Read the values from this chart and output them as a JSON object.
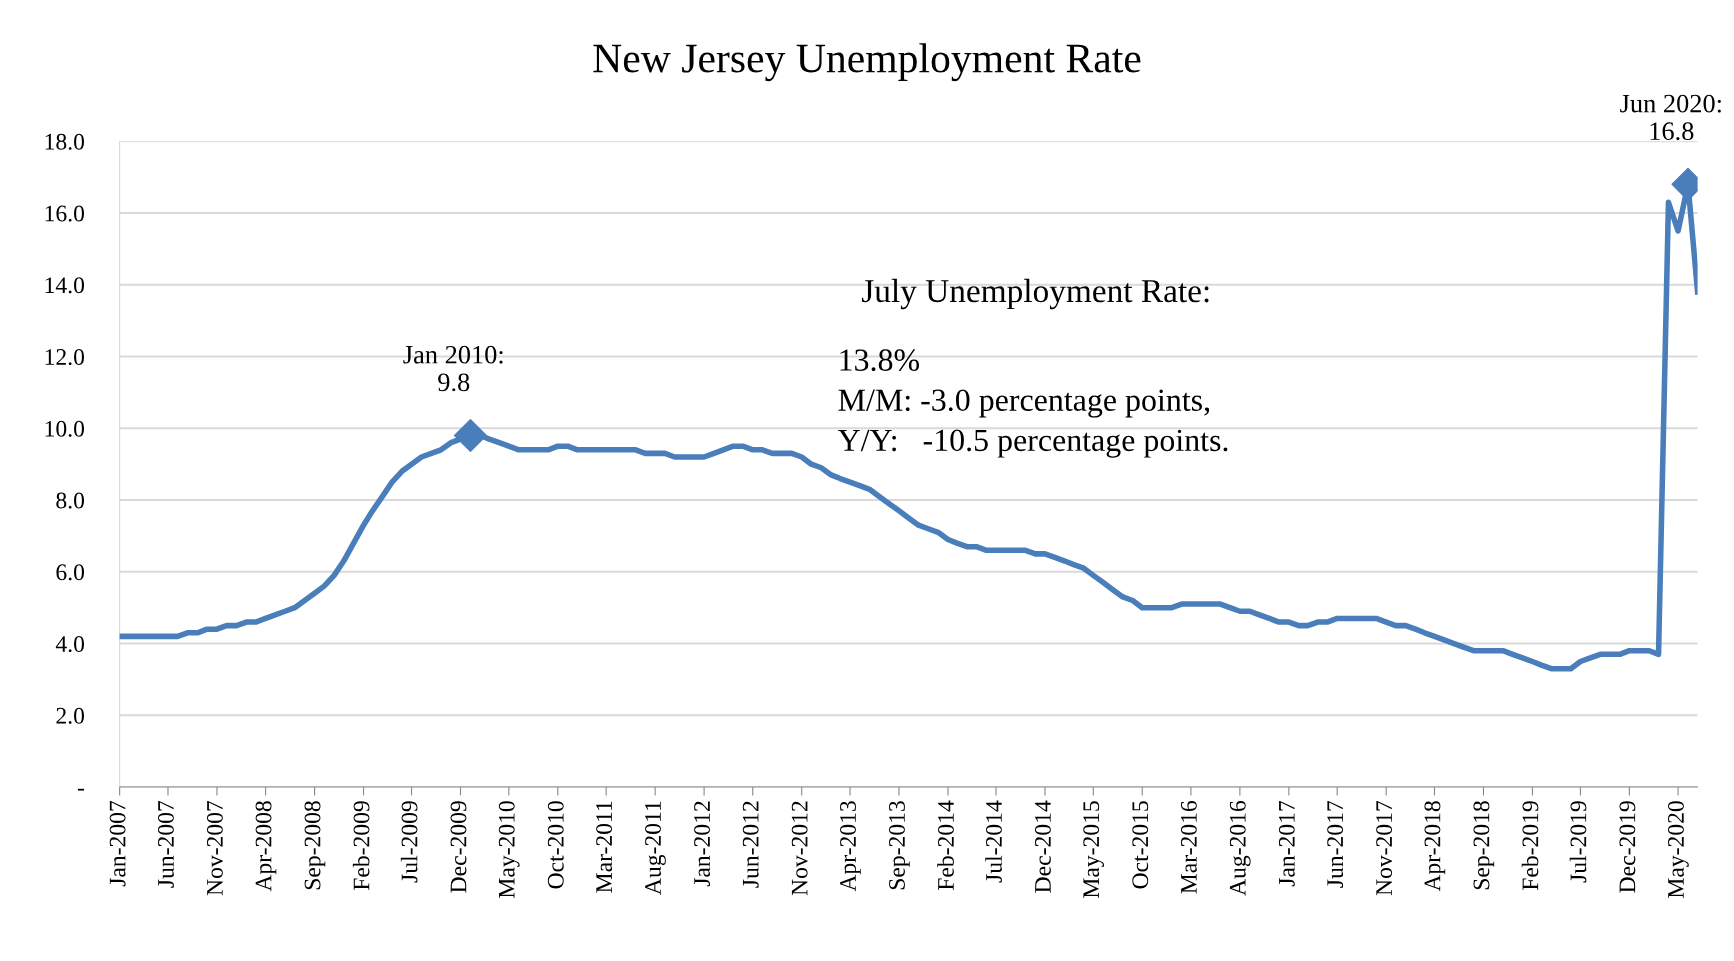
{
  "chart_data": {
    "type": "line",
    "title": "New Jersey Unemployment Rate",
    "x": [
      "2007-01",
      "2007-02",
      "2007-03",
      "2007-04",
      "2007-05",
      "2007-06",
      "2007-07",
      "2007-08",
      "2007-09",
      "2007-10",
      "2007-11",
      "2007-12",
      "2008-01",
      "2008-02",
      "2008-03",
      "2008-04",
      "2008-05",
      "2008-06",
      "2008-07",
      "2008-08",
      "2008-09",
      "2008-10",
      "2008-11",
      "2008-12",
      "2009-01",
      "2009-02",
      "2009-03",
      "2009-04",
      "2009-05",
      "2009-06",
      "2009-07",
      "2009-08",
      "2009-09",
      "2009-10",
      "2009-11",
      "2009-12",
      "2010-01",
      "2010-02",
      "2010-03",
      "2010-04",
      "2010-05",
      "2010-06",
      "2010-07",
      "2010-08",
      "2010-09",
      "2010-10",
      "2010-11",
      "2010-12",
      "2011-01",
      "2011-02",
      "2011-03",
      "2011-04",
      "2011-05",
      "2011-06",
      "2011-07",
      "2011-08",
      "2011-09",
      "2011-10",
      "2011-11",
      "2011-12",
      "2012-01",
      "2012-02",
      "2012-03",
      "2012-04",
      "2012-05",
      "2012-06",
      "2012-07",
      "2012-08",
      "2012-09",
      "2012-10",
      "2012-11",
      "2012-12",
      "2013-01",
      "2013-02",
      "2013-03",
      "2013-04",
      "2013-05",
      "2013-06",
      "2013-07",
      "2013-08",
      "2013-09",
      "2013-10",
      "2013-11",
      "2013-12",
      "2014-01",
      "2014-02",
      "2014-03",
      "2014-04",
      "2014-05",
      "2014-06",
      "2014-07",
      "2014-08",
      "2014-09",
      "2014-10",
      "2014-11",
      "2014-12",
      "2015-01",
      "2015-02",
      "2015-03",
      "2015-04",
      "2015-05",
      "2015-06",
      "2015-07",
      "2015-08",
      "2015-09",
      "2015-10",
      "2015-11",
      "2015-12",
      "2016-01",
      "2016-02",
      "2016-03",
      "2016-04",
      "2016-05",
      "2016-06",
      "2016-07",
      "2016-08",
      "2016-09",
      "2016-10",
      "2016-11",
      "2016-12",
      "2017-01",
      "2017-02",
      "2017-03",
      "2017-04",
      "2017-05",
      "2017-06",
      "2017-07",
      "2017-08",
      "2017-09",
      "2017-10",
      "2017-11",
      "2017-12",
      "2018-01",
      "2018-02",
      "2018-03",
      "2018-04",
      "2018-05",
      "2018-06",
      "2018-07",
      "2018-08",
      "2018-09",
      "2018-10",
      "2018-11",
      "2018-12",
      "2019-01",
      "2019-02",
      "2019-03",
      "2019-04",
      "2019-05",
      "2019-06",
      "2019-07",
      "2019-08",
      "2019-09",
      "2019-10",
      "2019-11",
      "2019-12",
      "2020-01",
      "2020-02",
      "2020-03",
      "2020-04",
      "2020-05",
      "2020-06",
      "2020-07"
    ],
    "series": [
      {
        "color": "#4a7ebb",
        "values": [
          4.2,
          4.2,
          4.2,
          4.2,
          4.2,
          4.2,
          4.2,
          4.3,
          4.3,
          4.4,
          4.4,
          4.5,
          4.5,
          4.6,
          4.6,
          4.7,
          4.8,
          4.9,
          5.0,
          5.2,
          5.4,
          5.6,
          5.9,
          6.3,
          6.8,
          7.3,
          7.7,
          8.1,
          8.5,
          8.8,
          9.0,
          9.2,
          9.3,
          9.4,
          9.6,
          9.7,
          9.8,
          9.8,
          9.7,
          9.6,
          9.5,
          9.4,
          9.4,
          9.4,
          9.4,
          9.5,
          9.5,
          9.4,
          9.4,
          9.4,
          9.4,
          9.4,
          9.4,
          9.4,
          9.3,
          9.3,
          9.3,
          9.2,
          9.2,
          9.2,
          9.2,
          9.3,
          9.4,
          9.5,
          9.5,
          9.4,
          9.4,
          9.3,
          9.3,
          9.3,
          9.2,
          9.0,
          8.9,
          8.7,
          8.6,
          8.5,
          8.4,
          8.3,
          8.1,
          7.9,
          7.7,
          7.5,
          7.3,
          7.2,
          7.1,
          6.9,
          6.8,
          6.7,
          6.7,
          6.6,
          6.6,
          6.6,
          6.6,
          6.6,
          6.5,
          6.5,
          6.4,
          6.3,
          6.2,
          6.1,
          5.9,
          5.7,
          5.5,
          5.3,
          5.2,
          5.0,
          5.0,
          5.0,
          5.0,
          5.1,
          5.1,
          5.1,
          5.1,
          5.1,
          5.0,
          4.9,
          4.9,
          4.8,
          4.7,
          4.6,
          4.6,
          4.5,
          4.5,
          4.6,
          4.6,
          4.7,
          4.7,
          4.7,
          4.7,
          4.7,
          4.6,
          4.5,
          4.5,
          4.4,
          4.3,
          4.2,
          4.1,
          4.0,
          3.9,
          3.8,
          3.8,
          3.8,
          3.8,
          3.7,
          3.6,
          3.5,
          3.4,
          3.3,
          3.3,
          3.3,
          3.5,
          3.6,
          3.7,
          3.7,
          3.7,
          3.8,
          3.8,
          3.8,
          3.7,
          16.3,
          15.5,
          16.8,
          13.8
        ]
      },
      {
        "type": "scatter",
        "color": "#4a7ebb",
        "marker": "diamond",
        "x": [
          "2010-01",
          "2020-06"
        ],
        "values": [
          9.8,
          16.8
        ]
      }
    ],
    "xlim": [
      "2007-01",
      "2020-07"
    ],
    "xticks": [
      {
        "value": "2007-01",
        "label": "Jan-2007"
      },
      {
        "value": "2007-06",
        "label": "Jun-2007"
      },
      {
        "value": "2007-11",
        "label": "Nov-2007"
      },
      {
        "value": "2008-04",
        "label": "Apr-2008"
      },
      {
        "value": "2008-09",
        "label": "Sep-2008"
      },
      {
        "value": "2009-02",
        "label": "Feb-2009"
      },
      {
        "value": "2009-07",
        "label": "Jul-2009"
      },
      {
        "value": "2009-12",
        "label": "Dec-2009"
      },
      {
        "value": "2010-05",
        "label": "May-2010"
      },
      {
        "value": "2010-10",
        "label": "Oct-2010"
      },
      {
        "value": "2011-03",
        "label": "Mar-2011"
      },
      {
        "value": "2011-08",
        "label": "Aug-2011"
      },
      {
        "value": "2012-01",
        "label": "Jan-2012"
      },
      {
        "value": "2012-06",
        "label": "Jun-2012"
      },
      {
        "value": "2012-11",
        "label": "Nov-2012"
      },
      {
        "value": "2013-04",
        "label": "Apr-2013"
      },
      {
        "value": "2013-09",
        "label": "Sep-2013"
      },
      {
        "value": "2014-02",
        "label": "Feb-2014"
      },
      {
        "value": "2014-07",
        "label": "Jul-2014"
      },
      {
        "value": "2014-12",
        "label": "Dec-2014"
      },
      {
        "value": "2015-05",
        "label": "May-2015"
      },
      {
        "value": "2015-10",
        "label": "Oct-2015"
      },
      {
        "value": "2016-03",
        "label": "Mar-2016"
      },
      {
        "value": "2016-08",
        "label": "Aug-2016"
      },
      {
        "value": "2017-01",
        "label": "Jan-2017"
      },
      {
        "value": "2017-06",
        "label": "Jun-2017"
      },
      {
        "value": "2017-11",
        "label": "Nov-2017"
      },
      {
        "value": "2018-04",
        "label": "Apr-2018"
      },
      {
        "value": "2018-09",
        "label": "Sep-2018"
      },
      {
        "value": "2019-02",
        "label": "Feb-2019"
      },
      {
        "value": "2019-07",
        "label": "Jul-2019"
      },
      {
        "value": "2019-12",
        "label": "Dec-2019"
      },
      {
        "value": "2020-05",
        "label": "May-2020"
      }
    ],
    "ylim": [
      0,
      18
    ],
    "yticks": [
      {
        "value": 0,
        "label": "-"
      },
      {
        "value": 2,
        "label": "2.0"
      },
      {
        "value": 4,
        "label": "4.0"
      },
      {
        "value": 6,
        "label": "6.0"
      },
      {
        "value": 8,
        "label": "8.0"
      },
      {
        "value": 10,
        "label": "10.0"
      },
      {
        "value": 12,
        "label": "12.0"
      },
      {
        "value": 14,
        "label": "14.0"
      },
      {
        "value": 16,
        "label": "16.0"
      },
      {
        "value": 18,
        "label": "18.0"
      }
    ],
    "grid": "y",
    "annotations": [
      {
        "text": "Jan 2010:\n9.8",
        "x": "2010-01",
        "y": 9.8
      },
      {
        "text": "Jun 2020:\n16.8",
        "x": "2020-06",
        "y": 16.8
      },
      "July Unemployment Rate:",
      "13.8%\nM/M: -3.0 percentage points,\nY/Y:   -10.5 percentage points."
    ]
  }
}
